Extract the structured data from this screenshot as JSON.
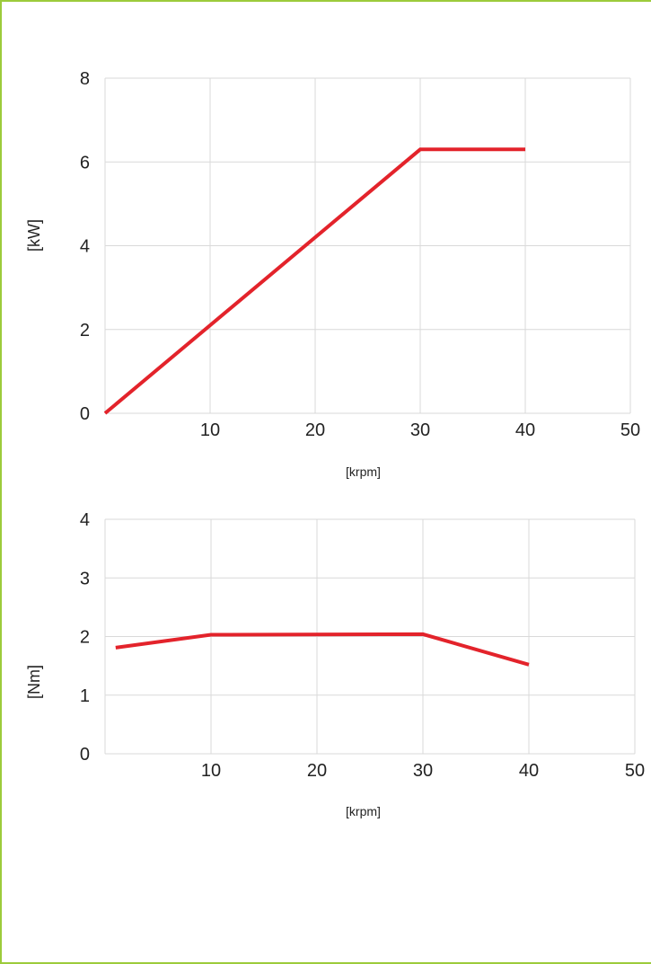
{
  "frame": {
    "border_color": "#9ccb3b"
  },
  "chart_data": [
    {
      "type": "line",
      "xlabel": "[krpm]",
      "ylabel": "[kW]",
      "xlim": [
        0,
        50
      ],
      "ylim": [
        0,
        8
      ],
      "x_ticks": [
        10,
        20,
        30,
        40,
        50
      ],
      "y_ticks": [
        0,
        2,
        4,
        6,
        8
      ],
      "grid": true,
      "series": [
        {
          "color": "#e3232b",
          "points": [
            [
              0,
              0
            ],
            [
              30,
              6.3
            ],
            [
              40,
              6.3
            ]
          ]
        }
      ]
    },
    {
      "type": "line",
      "xlabel": "[krpm]",
      "ylabel": "[Nm]",
      "xlim": [
        0,
        50
      ],
      "ylim": [
        0,
        4
      ],
      "x_ticks": [
        10,
        20,
        30,
        40,
        50
      ],
      "y_ticks": [
        0,
        1,
        2,
        3,
        4
      ],
      "grid": true,
      "series": [
        {
          "color": "#e3232b",
          "points": [
            [
              1,
              1.81
            ],
            [
              10,
              2.03
            ],
            [
              30,
              2.04
            ],
            [
              40,
              1.52
            ]
          ]
        }
      ]
    }
  ]
}
